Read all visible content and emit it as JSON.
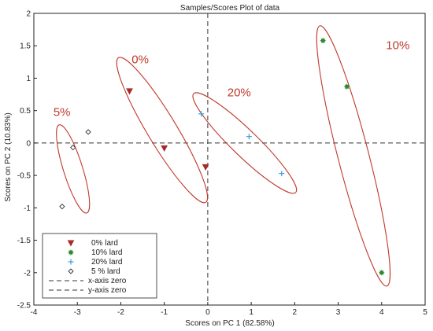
{
  "chart_data": {
    "type": "scatter",
    "title": "Samples/Scores Plot of data",
    "xlabel": "Scores on PC 1 (82.58%)",
    "ylabel": "Scores on PC 2 (10.83%)",
    "xlim": [
      -4,
      5
    ],
    "ylim": [
      -2.5,
      2
    ],
    "xticks": [
      -4,
      -3,
      -2,
      -1,
      0,
      1,
      2,
      3,
      4,
      5
    ],
    "yticks": [
      2,
      1.5,
      1,
      0.5,
      0,
      -0.5,
      -1,
      -1.5,
      -2,
      -2.5
    ],
    "xtick_labels": [
      "-4",
      "-3",
      "-2",
      "-1",
      "0",
      "1",
      "2",
      "3",
      "4",
      "5"
    ],
    "ytick_labels": [
      "2",
      "1.5",
      "1",
      "0.5",
      "0",
      "-0.5",
      "-1",
      "-1.5",
      "-2",
      "-2.5"
    ],
    "grid": false,
    "legend_position": "bottom-left",
    "series": [
      {
        "name": "0% lard",
        "marker": "triangle-down",
        "color": "#a52a2a",
        "points": [
          [
            -1.8,
            0.8
          ],
          [
            -1.0,
            -0.08
          ],
          [
            -0.05,
            -0.37
          ]
        ]
      },
      {
        "name": "10% lard",
        "marker": "star",
        "color": "#2e8b2e",
        "points": [
          [
            2.65,
            1.58
          ],
          [
            3.2,
            0.87
          ],
          [
            4.0,
            -2.0
          ]
        ]
      },
      {
        "name": "20% lard",
        "marker": "plus",
        "color": "#3aa0e0",
        "points": [
          [
            -0.15,
            0.45
          ],
          [
            0.95,
            0.1
          ],
          [
            1.7,
            -0.47
          ]
        ]
      },
      {
        "name": "5 % lard",
        "marker": "diamond",
        "color": "#333333",
        "points": [
          [
            -2.75,
            0.17
          ],
          [
            -3.1,
            -0.07
          ],
          [
            -3.35,
            -0.98
          ]
        ]
      }
    ],
    "reference_lines": [
      {
        "name": "x-axis zero",
        "axis": "x",
        "value": 0
      },
      {
        "name": "y-axis zero",
        "axis": "y",
        "value": 0
      }
    ],
    "annotations": [
      {
        "text": "0%",
        "x": -1.75,
        "y": 1.23
      },
      {
        "text": "5%",
        "x": -3.55,
        "y": 0.42
      },
      {
        "text": "20%",
        "x": 0.45,
        "y": 0.72
      },
      {
        "text": "10%",
        "x": 4.1,
        "y": 1.45
      }
    ],
    "ellipses": [
      {
        "group": "5% lard",
        "cx": -3.1,
        "cy": -0.4,
        "rx": 0.75,
        "ry": 0.2,
        "angle_deg": -65
      },
      {
        "group": "0% lard",
        "cx": -1.05,
        "cy": 0.2,
        "rx": 1.5,
        "ry": 0.27,
        "angle_deg": -48
      },
      {
        "group": "20% lard",
        "cx": 0.85,
        "cy": 0.0,
        "rx": 1.4,
        "ry": 0.22,
        "angle_deg": -33
      },
      {
        "group": "10% lard",
        "cx": 3.35,
        "cy": -0.2,
        "rx": 2.15,
        "ry": 0.33,
        "angle_deg": -69
      }
    ],
    "colors": {
      "ellipse": "#c0392b",
      "annotation": "#c0392b",
      "axis": "#222222",
      "ref_line": "#333333"
    }
  }
}
